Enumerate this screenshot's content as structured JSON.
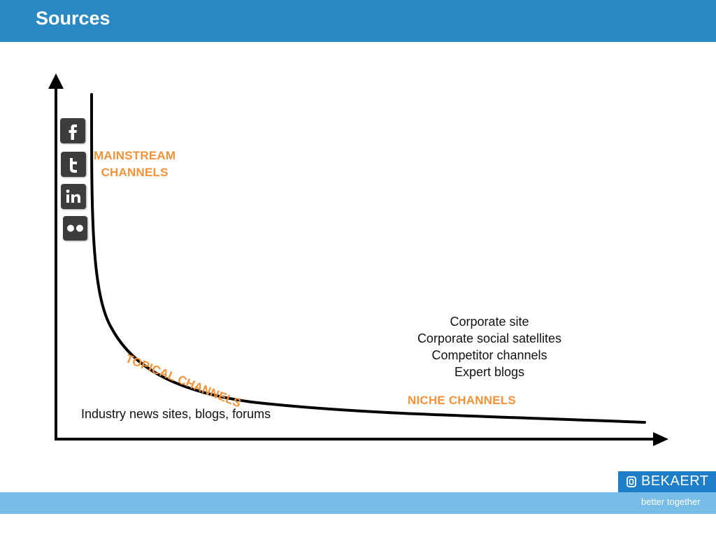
{
  "header": {
    "title": "Sources",
    "accent_color": "#2a89c3"
  },
  "diagram": {
    "curve_type": "long-tail",
    "social_icons": [
      {
        "name": "facebook-icon",
        "glyph": "f"
      },
      {
        "name": "twitter-icon",
        "glyph": "t"
      },
      {
        "name": "linkedin-icon",
        "glyph": "in"
      },
      {
        "name": "flickr-icon",
        "glyph": "●●"
      }
    ],
    "mainstream": {
      "line1": "MAINSTREAM",
      "line2": "CHANNELS"
    },
    "topical": "TOPICAL CHANNELS",
    "niche": "NICHE CHANNELS",
    "industry": "Industry news sites, blogs, forums",
    "niche_sources": [
      "Corporate site",
      "Corporate social satellites",
      "Competitor channels",
      "Expert blogs"
    ],
    "label_color": "#f4923a"
  },
  "footer": {
    "brand": "BEKAERT",
    "tagline": "better together",
    "brand_color": "#1e7ec8",
    "stripe_color": "#78bde8"
  }
}
